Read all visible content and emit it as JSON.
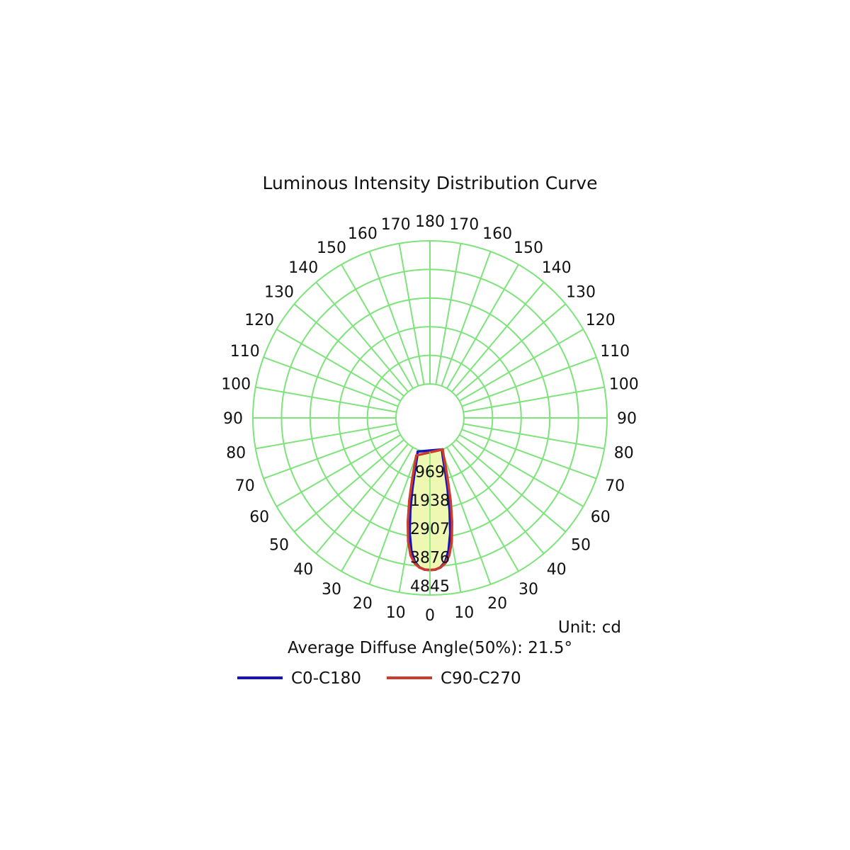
{
  "chart_data": {
    "type": "polar",
    "title": "Luminous Intensity Distribution Curve",
    "unit_text": "Unit: cd",
    "beam_angle_text": "Average Diffuse Angle(50%): 21.5°",
    "radial_ticks": [
      969,
      1938,
      2907,
      3876,
      4845
    ],
    "radial_max": 4845,
    "angle_step_deg": 10,
    "angle_labels_left": [
      "0",
      "10",
      "20",
      "30",
      "40",
      "50",
      "60",
      "70",
      "80",
      "90",
      "100",
      "110",
      "120",
      "130",
      "140",
      "150",
      "160",
      "170",
      "180"
    ],
    "angle_labels_right": [
      "10",
      "20",
      "30",
      "40",
      "50",
      "60",
      "70",
      "80",
      "90",
      "100",
      "110",
      "120",
      "130",
      "140",
      "150",
      "160",
      "170"
    ],
    "grid": true,
    "grid_color": "#7de37a",
    "fill_color": "#eef8b0",
    "legend_position": "bottom",
    "series": [
      {
        "name": "C0-C180",
        "color": "#1414b8",
        "points": [
          [
            0,
            4000
          ],
          [
            2,
            3990
          ],
          [
            4,
            3920
          ],
          [
            6,
            3750
          ],
          [
            8,
            3380
          ],
          [
            10,
            2800
          ],
          [
            12,
            2050
          ],
          [
            14,
            1300
          ],
          [
            16,
            700
          ],
          [
            18,
            280
          ],
          [
            20,
            60
          ],
          [
            22,
            0
          ]
        ]
      },
      {
        "name": "C90-C270",
        "color": "#cc3b2b",
        "points": [
          [
            0,
            4000
          ],
          [
            2,
            3985
          ],
          [
            4,
            3930
          ],
          [
            6,
            3800
          ],
          [
            8,
            3550
          ],
          [
            10,
            3100
          ],
          [
            12,
            2450
          ],
          [
            14,
            1750
          ],
          [
            16,
            1050
          ],
          [
            18,
            550
          ],
          [
            20,
            200
          ],
          [
            22,
            0
          ]
        ]
      }
    ]
  }
}
